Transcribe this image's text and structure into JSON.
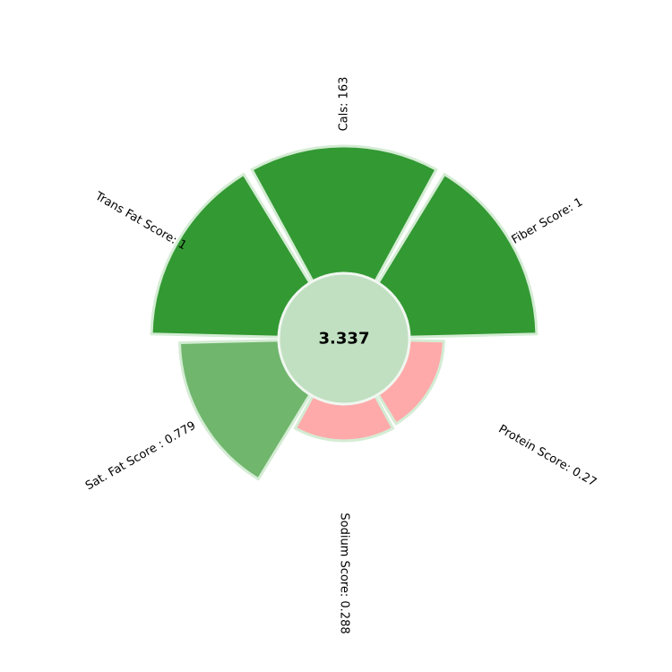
{
  "chart_data": {
    "type": "polar-bar",
    "max_value": 1,
    "total_score": "3.337",
    "segments": [
      {
        "label": "Fiber Score: 1",
        "value": 1.0,
        "color": "#339933"
      },
      {
        "label": "Cals: 163",
        "value": 1.0,
        "color": "#339933"
      },
      {
        "label": "Trans Fat Score: 1",
        "value": 1.0,
        "color": "#339933"
      },
      {
        "label": "Sat. Fat Score : 0.779",
        "value": 0.779,
        "color": "#70b66d"
      },
      {
        "label": "Sodium Score: 0.288",
        "value": 0.288,
        "color": "#ffaaaa"
      },
      {
        "label": "Protein Score: 0.27",
        "value": 0.27,
        "color": "#ffaaaa"
      }
    ],
    "colors": {
      "edge": "#d4ecd4",
      "center_fill": "#c1dfc1",
      "center_edge": "#f0f7f0"
    }
  }
}
